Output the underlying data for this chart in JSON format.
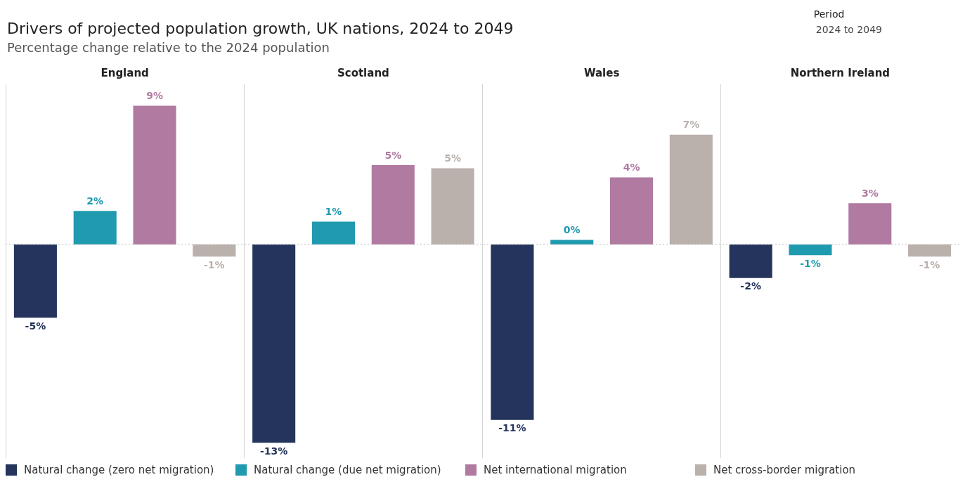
{
  "chart_data": {
    "type": "bar",
    "title": "Drivers of projected population growth, UK nations, 2024 to 2049",
    "subtitle": "Percentage change relative to the 2024 population",
    "annotations": [
      "Period",
      "2024 to 2049"
    ],
    "categories": [
      "England",
      "Scotland",
      "Wales",
      "Northern Ireland"
    ],
    "series": [
      {
        "name": "Natural change (zero net migration)",
        "color": "#25345d",
        "values": [
          -4.8,
          -13.0,
          -11.5,
          -2.2
        ],
        "value_labels": [
          "-5%",
          "-13%",
          "-11%",
          "-2%"
        ]
      },
      {
        "name": "Natural change (due net migration)",
        "color": "#1f9aaf",
        "values": [
          2.2,
          1.5,
          0.3,
          -0.7
        ],
        "value_labels": [
          "2%",
          "1%",
          "0%",
          "-1%"
        ]
      },
      {
        "name": "Net international migration",
        "color": "#b07aa1",
        "values": [
          9.1,
          5.2,
          4.4,
          2.7
        ],
        "value_labels": [
          "9%",
          "5%",
          "4%",
          "3%"
        ]
      },
      {
        "name": "Net cross-border migration",
        "color": "#bab0ac",
        "values": [
          -0.8,
          5.0,
          7.2,
          -0.8
        ],
        "value_labels": [
          "-1%",
          "5%",
          "7%",
          "-1%"
        ]
      }
    ],
    "ylim": [
      -14,
      10.5
    ],
    "tick_labels": "x",
    "grid": "x",
    "legend": "bottom",
    "ref_lines": [
      {
        "axis": "y",
        "value": 0,
        "line_style": "dotted",
        "color": "#bbbbbb"
      }
    ]
  }
}
